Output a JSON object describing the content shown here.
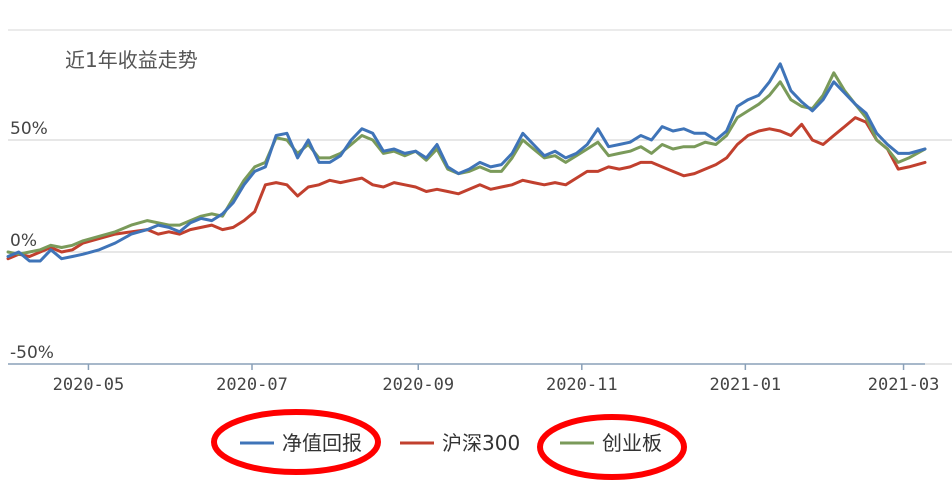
{
  "chart_data": {
    "type": "line",
    "title": "近1年收益走势",
    "xlabel": "",
    "ylabel": "",
    "ylim": [
      -50,
      60
    ],
    "y_ticks": [
      {
        "value": 50,
        "label": "50%"
      },
      {
        "value": 0,
        "label": "0%"
      },
      {
        "value": -50,
        "label": "-50%"
      }
    ],
    "x_ticks": [
      {
        "value": 30,
        "label": "2020-05"
      },
      {
        "value": 91,
        "label": "2020-07"
      },
      {
        "value": 153,
        "label": "2020-09"
      },
      {
        "value": 214,
        "label": "2020-11"
      },
      {
        "value": 275,
        "label": "2021-01"
      },
      {
        "value": 334,
        "label": "2021-03"
      }
    ],
    "xlim": [
      0,
      342
    ],
    "grid": true,
    "legend_position": "bottom",
    "series": [
      {
        "name": "净值回报",
        "color": "#3F74B8",
        "points": [
          [
            0,
            -2
          ],
          [
            4,
            0
          ],
          [
            8,
            -4
          ],
          [
            12,
            -4
          ],
          [
            16,
            1
          ],
          [
            20,
            -3
          ],
          [
            24,
            -2
          ],
          [
            28,
            -1
          ],
          [
            34,
            1
          ],
          [
            40,
            4
          ],
          [
            46,
            8
          ],
          [
            52,
            10
          ],
          [
            56,
            12
          ],
          [
            60,
            11
          ],
          [
            64,
            9
          ],
          [
            68,
            13
          ],
          [
            72,
            15
          ],
          [
            76,
            14
          ],
          [
            80,
            17
          ],
          [
            84,
            22
          ],
          [
            88,
            30
          ],
          [
            92,
            36
          ],
          [
            96,
            38
          ],
          [
            100,
            52
          ],
          [
            104,
            53
          ],
          [
            108,
            42
          ],
          [
            112,
            50
          ],
          [
            116,
            40
          ],
          [
            120,
            40
          ],
          [
            124,
            43
          ],
          [
            128,
            50
          ],
          [
            132,
            55
          ],
          [
            136,
            53
          ],
          [
            140,
            45
          ],
          [
            144,
            46
          ],
          [
            148,
            44
          ],
          [
            152,
            45
          ],
          [
            156,
            42
          ],
          [
            160,
            48
          ],
          [
            164,
            38
          ],
          [
            168,
            35
          ],
          [
            172,
            37
          ],
          [
            176,
            40
          ],
          [
            180,
            38
          ],
          [
            184,
            39
          ],
          [
            188,
            44
          ],
          [
            192,
            53
          ],
          [
            196,
            48
          ],
          [
            200,
            43
          ],
          [
            204,
            45
          ],
          [
            208,
            42
          ],
          [
            212,
            44
          ],
          [
            216,
            48
          ],
          [
            220,
            55
          ],
          [
            224,
            47
          ],
          [
            228,
            48
          ],
          [
            232,
            49
          ],
          [
            236,
            52
          ],
          [
            240,
            50
          ],
          [
            244,
            56
          ],
          [
            248,
            54
          ],
          [
            252,
            55
          ],
          [
            256,
            53
          ],
          [
            260,
            53
          ],
          [
            264,
            50
          ],
          [
            268,
            54
          ],
          [
            272,
            65
          ],
          [
            276,
            68
          ],
          [
            280,
            70
          ],
          [
            284,
            76
          ],
          [
            288,
            84
          ],
          [
            292,
            72
          ],
          [
            296,
            67
          ],
          [
            300,
            63
          ],
          [
            304,
            68
          ],
          [
            308,
            76
          ],
          [
            312,
            71
          ],
          [
            316,
            66
          ],
          [
            320,
            62
          ],
          [
            324,
            53
          ],
          [
            328,
            48
          ],
          [
            332,
            44
          ],
          [
            336,
            44
          ],
          [
            342,
            46
          ]
        ]
      },
      {
        "name": "沪深300",
        "color": "#C1402E",
        "points": [
          [
            0,
            -3
          ],
          [
            4,
            -1
          ],
          [
            8,
            -2
          ],
          [
            12,
            0
          ],
          [
            16,
            2
          ],
          [
            20,
            0
          ],
          [
            24,
            1
          ],
          [
            28,
            4
          ],
          [
            34,
            6
          ],
          [
            40,
            8
          ],
          [
            46,
            9
          ],
          [
            52,
            10
          ],
          [
            56,
            8
          ],
          [
            60,
            9
          ],
          [
            64,
            8
          ],
          [
            68,
            10
          ],
          [
            72,
            11
          ],
          [
            76,
            12
          ],
          [
            80,
            10
          ],
          [
            84,
            11
          ],
          [
            88,
            14
          ],
          [
            92,
            18
          ],
          [
            96,
            30
          ],
          [
            100,
            31
          ],
          [
            104,
            30
          ],
          [
            108,
            25
          ],
          [
            112,
            29
          ],
          [
            116,
            30
          ],
          [
            120,
            32
          ],
          [
            124,
            31
          ],
          [
            128,
            32
          ],
          [
            132,
            33
          ],
          [
            136,
            30
          ],
          [
            140,
            29
          ],
          [
            144,
            31
          ],
          [
            148,
            30
          ],
          [
            152,
            29
          ],
          [
            156,
            27
          ],
          [
            160,
            28
          ],
          [
            164,
            27
          ],
          [
            168,
            26
          ],
          [
            172,
            28
          ],
          [
            176,
            30
          ],
          [
            180,
            28
          ],
          [
            184,
            29
          ],
          [
            188,
            30
          ],
          [
            192,
            32
          ],
          [
            196,
            31
          ],
          [
            200,
            30
          ],
          [
            204,
            31
          ],
          [
            208,
            30
          ],
          [
            212,
            33
          ],
          [
            216,
            36
          ],
          [
            220,
            36
          ],
          [
            224,
            38
          ],
          [
            228,
            37
          ],
          [
            232,
            38
          ],
          [
            236,
            40
          ],
          [
            240,
            40
          ],
          [
            244,
            38
          ],
          [
            248,
            36
          ],
          [
            252,
            34
          ],
          [
            256,
            35
          ],
          [
            260,
            37
          ],
          [
            264,
            39
          ],
          [
            268,
            42
          ],
          [
            272,
            48
          ],
          [
            276,
            52
          ],
          [
            280,
            54
          ],
          [
            284,
            55
          ],
          [
            288,
            54
          ],
          [
            292,
            52
          ],
          [
            296,
            57
          ],
          [
            300,
            50
          ],
          [
            304,
            48
          ],
          [
            308,
            52
          ],
          [
            312,
            56
          ],
          [
            316,
            60
          ],
          [
            320,
            58
          ],
          [
            324,
            50
          ],
          [
            328,
            46
          ],
          [
            332,
            37
          ],
          [
            336,
            38
          ],
          [
            342,
            40
          ]
        ]
      },
      {
        "name": "创业板",
        "color": "#7A9A5A",
        "points": [
          [
            0,
            0
          ],
          [
            4,
            -1
          ],
          [
            8,
            0
          ],
          [
            12,
            1
          ],
          [
            16,
            3
          ],
          [
            20,
            2
          ],
          [
            24,
            3
          ],
          [
            28,
            5
          ],
          [
            34,
            7
          ],
          [
            40,
            9
          ],
          [
            46,
            12
          ],
          [
            52,
            14
          ],
          [
            56,
            13
          ],
          [
            60,
            12
          ],
          [
            64,
            12
          ],
          [
            68,
            14
          ],
          [
            72,
            16
          ],
          [
            76,
            17
          ],
          [
            80,
            16
          ],
          [
            84,
            24
          ],
          [
            88,
            32
          ],
          [
            92,
            38
          ],
          [
            96,
            40
          ],
          [
            100,
            51
          ],
          [
            104,
            50
          ],
          [
            108,
            44
          ],
          [
            112,
            48
          ],
          [
            116,
            42
          ],
          [
            120,
            42
          ],
          [
            124,
            44
          ],
          [
            128,
            48
          ],
          [
            132,
            52
          ],
          [
            136,
            50
          ],
          [
            140,
            44
          ],
          [
            144,
            45
          ],
          [
            148,
            43
          ],
          [
            152,
            45
          ],
          [
            156,
            41
          ],
          [
            160,
            46
          ],
          [
            164,
            37
          ],
          [
            168,
            35
          ],
          [
            172,
            36
          ],
          [
            176,
            38
          ],
          [
            180,
            36
          ],
          [
            184,
            36
          ],
          [
            188,
            42
          ],
          [
            192,
            50
          ],
          [
            196,
            46
          ],
          [
            200,
            42
          ],
          [
            204,
            43
          ],
          [
            208,
            40
          ],
          [
            212,
            43
          ],
          [
            216,
            46
          ],
          [
            220,
            49
          ],
          [
            224,
            43
          ],
          [
            228,
            44
          ],
          [
            232,
            45
          ],
          [
            236,
            47
          ],
          [
            240,
            44
          ],
          [
            244,
            48
          ],
          [
            248,
            46
          ],
          [
            252,
            47
          ],
          [
            256,
            47
          ],
          [
            260,
            49
          ],
          [
            264,
            48
          ],
          [
            268,
            52
          ],
          [
            272,
            60
          ],
          [
            276,
            63
          ],
          [
            280,
            66
          ],
          [
            284,
            70
          ],
          [
            288,
            76
          ],
          [
            292,
            68
          ],
          [
            296,
            65
          ],
          [
            300,
            64
          ],
          [
            304,
            70
          ],
          [
            308,
            80
          ],
          [
            312,
            72
          ],
          [
            316,
            66
          ],
          [
            320,
            60
          ],
          [
            324,
            50
          ],
          [
            328,
            46
          ],
          [
            332,
            40
          ],
          [
            336,
            42
          ],
          [
            342,
            46
          ]
        ]
      }
    ]
  }
}
